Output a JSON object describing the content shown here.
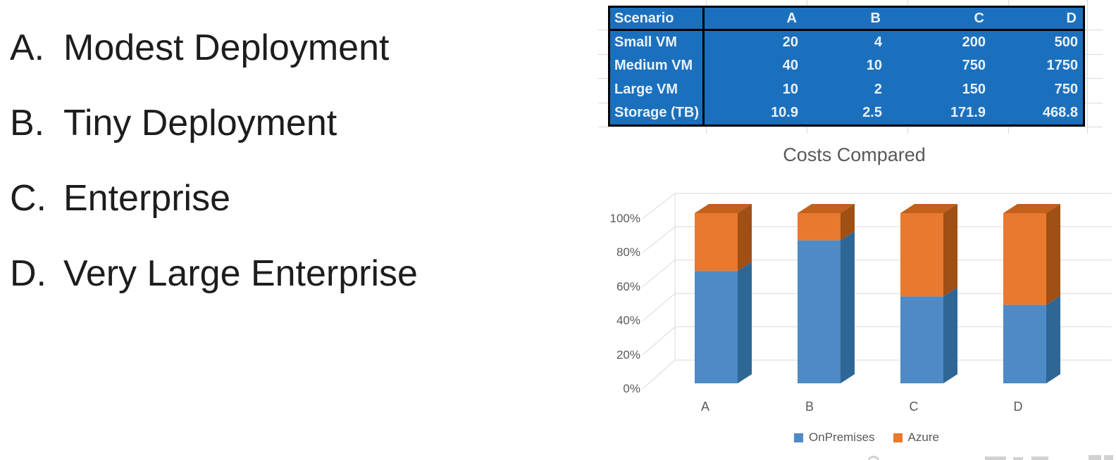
{
  "options": {
    "items": [
      {
        "label": "A.",
        "text": "Modest Deployment"
      },
      {
        "label": "B.",
        "text": "Tiny Deployment"
      },
      {
        "label": "C.",
        "text": "Enterprise"
      },
      {
        "label": "D.",
        "text": "Very Large Enterprise"
      }
    ]
  },
  "table": {
    "header": [
      "Scenario",
      "A",
      "B",
      "C",
      "D"
    ],
    "rows": [
      {
        "label": "Small VM",
        "values": [
          "20",
          "4",
          "200",
          "500"
        ]
      },
      {
        "label": "Medium VM",
        "values": [
          "40",
          "10",
          "750",
          "1750"
        ]
      },
      {
        "label": "Large VM",
        "values": [
          "10",
          "2",
          "150",
          "750"
        ]
      },
      {
        "label": "Storage (TB)",
        "values": [
          "10.9",
          "2.5",
          "171.9",
          "468.8"
        ]
      }
    ],
    "fill_color": "#1B70BE",
    "text_color": "#EAF2FA",
    "border_color": "#000000"
  },
  "chart_data": {
    "type": "bar",
    "subtype": "3d-100-percent-stacked-column",
    "title": "Costs Compared",
    "categories": [
      "A",
      "B",
      "C",
      "D"
    ],
    "series": [
      {
        "name": "OnPremises",
        "color": "#4D8AC6",
        "values": [
          66,
          84,
          51,
          46
        ]
      },
      {
        "name": "Azure",
        "color": "#E8792E",
        "values": [
          34,
          16,
          49,
          54
        ]
      }
    ],
    "units": "percent of total cost",
    "xlabel": "",
    "ylabel": "",
    "yticks": [
      "0%",
      "20%",
      "40%",
      "60%",
      "80%",
      "100%"
    ],
    "ylim": [
      0,
      100
    ],
    "grid": true,
    "gridline_color": "#D9D9D9",
    "legend_position": "bottom"
  }
}
